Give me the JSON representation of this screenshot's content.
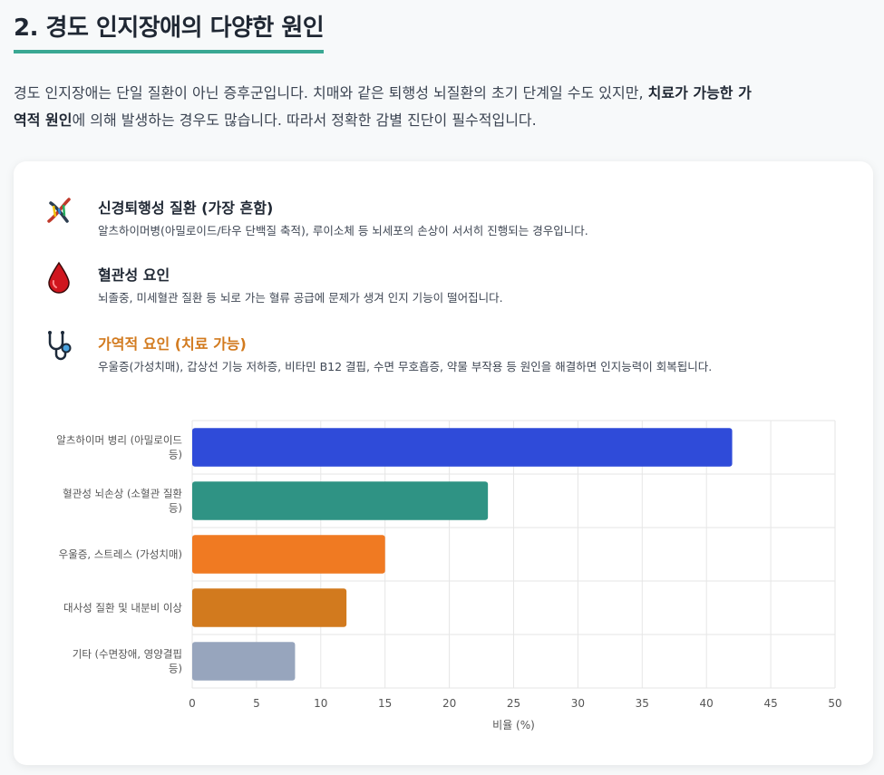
{
  "heading": "2. 경도 인지장애의 다양한 원인",
  "intro": {
    "part1": "경도 인지장애는 단일 질환이 아닌 증후군입니다. 치매와 같은 퇴행성 뇌질환의 초기 단계일 수도 있지만, ",
    "bold1": "치료가 가능한 가",
    "bold2": "역적 원인",
    "part2": "에 의해 발생하는 경우도 많습니다. 따라서 정확한 감별 진단이 필수적입니다."
  },
  "causes": [
    {
      "icon": "dna-icon",
      "title": "신경퇴행성 질환 (가장 흔함)",
      "desc": "알츠하이머병(아밀로이드/타우 단백질 축적), 루이소체 등 뇌세포의 손상이 서서히 진행되는 경우입니다."
    },
    {
      "icon": "blood-drop-icon",
      "title": "혈관성 요인",
      "desc": "뇌졸중, 미세혈관 질환 등 뇌로 가는 혈류 공급에 문제가 생겨 인지 기능이 떨어집니다."
    },
    {
      "icon": "stethoscope-icon",
      "title": "가역적 요인 (치료 가능)",
      "desc": "우울증(가성치매), 갑상선 기능 저하증, 비타민 B12 결핍, 수면 무호흡증, 약물 부작용 등 원인을 해결하면 인지능력이 회복됩니다."
    }
  ],
  "colors": {
    "accent": "#3aa893",
    "orange": "#d27a1e"
  },
  "chart_data": {
    "type": "bar",
    "orientation": "horizontal",
    "categories": [
      [
        "알츠하이머 병리 (아밀로이드",
        "등)"
      ],
      [
        "혈관성 뇌손상 (소혈관 질환",
        "등)"
      ],
      [
        "우울증, 스트레스 (가성치매)"
      ],
      [
        "대사성 질환 및 내분비 이상"
      ],
      [
        "기타 (수면장애, 영양결핍",
        "등)"
      ]
    ],
    "values": [
      42,
      23,
      15,
      12,
      8
    ],
    "colors": [
      "#2f4bd9",
      "#2f9384",
      "#f07a22",
      "#d27a1e",
      "#97a5bd"
    ],
    "xlabel": "비율 (%)",
    "xlim": [
      0,
      50
    ],
    "xticks": [
      0,
      5,
      10,
      15,
      20,
      25,
      30,
      35,
      40,
      45,
      50
    ],
    "grid": true
  }
}
